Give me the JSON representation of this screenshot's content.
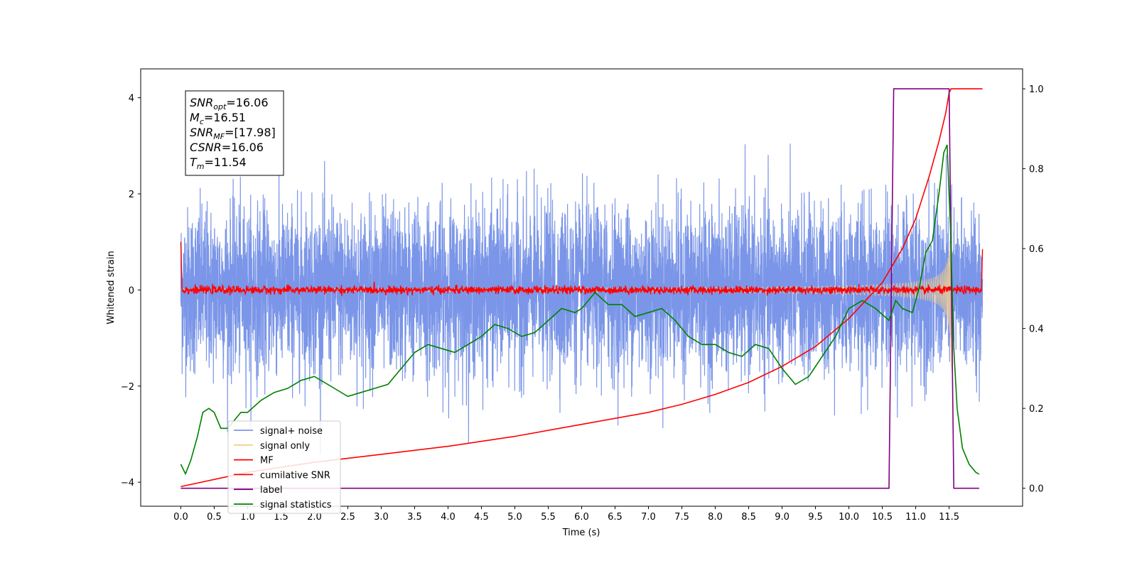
{
  "chart_data": {
    "type": "line",
    "xlabel": "Time (s)",
    "ylabel": "Whitened strain",
    "xlim": [
      -0.6,
      12.6
    ],
    "ylim": [
      -4.5,
      4.6
    ],
    "y2lim": [
      -0.045,
      1.05
    ],
    "x_ticks": [
      "0.0",
      "0.5",
      "1.0",
      "1.5",
      "2.0",
      "2.5",
      "3.0",
      "3.5",
      "4.0",
      "4.5",
      "5.0",
      "5.5",
      "6.0",
      "6.5",
      "7.0",
      "7.5",
      "8.0",
      "8.5",
      "9.0",
      "9.5",
      "10.0",
      "10.5",
      "11.0",
      "11.5"
    ],
    "y_ticks": [
      "4",
      "2",
      "0",
      "−2",
      "−4"
    ],
    "y2_ticks": [
      "1.0",
      "0.8",
      "0.6",
      "0.4",
      "0.2",
      "0.0"
    ],
    "grid": false,
    "legend_position": "lower-left",
    "annotation": [
      {
        "base": "SNR",
        "sub": "opt",
        "value": "=16.06"
      },
      {
        "base": "M",
        "sub": "c",
        "value": "=16.51"
      },
      {
        "base": "SNR",
        "sub": "MF",
        "value": "=[17.98]"
      },
      {
        "base": "CSNR",
        "sub": "",
        "value": "=16.06"
      },
      {
        "base": "T",
        "sub": "m",
        "value": "=11.54"
      }
    ],
    "series": [
      {
        "name": "signal+ noise",
        "color": "#7b96e8",
        "axis": "left",
        "kind": "noise",
        "x_range": [
          0,
          12
        ],
        "amplitude_std": 0.85,
        "peak_range": [
          -3.6,
          3.4
        ]
      },
      {
        "name": "signal only",
        "color": "#f5cf8a",
        "axis": "left",
        "kind": "chirp",
        "x_range": [
          0,
          11.54
        ],
        "merger_time": 11.54,
        "peak_amplitude": 2.7
      },
      {
        "name": "MF",
        "color": "#ff0000",
        "axis": "left",
        "kind": "mf",
        "x_range": [
          0,
          12
        ],
        "baseline": 0.0,
        "start_value": 1.0,
        "end_value": 0.85
      },
      {
        "name": "cumilative SNR",
        "color": "#ff0000",
        "axis": "right",
        "x": [
          0.0,
          1.0,
          2.0,
          3.0,
          4.0,
          5.0,
          6.0,
          7.0,
          7.5,
          8.0,
          8.5,
          9.0,
          9.5,
          10.0,
          10.5,
          10.8,
          11.0,
          11.2,
          11.35,
          11.45,
          11.5,
          11.53,
          11.55,
          11.6,
          11.9,
          12.0
        ],
        "values": [
          0.004,
          0.04,
          0.065,
          0.085,
          0.105,
          0.13,
          0.16,
          0.19,
          0.21,
          0.235,
          0.265,
          0.305,
          0.355,
          0.425,
          0.515,
          0.6,
          0.675,
          0.78,
          0.87,
          0.94,
          0.99,
          1.0,
          1.0,
          1.0,
          1.0,
          1.0
        ]
      },
      {
        "name": "label",
        "color": "#800080",
        "axis": "right",
        "x": [
          0.0,
          10.6,
          10.67,
          11.5,
          11.57,
          11.95
        ],
        "values": [
          0.0,
          0.0,
          1.0,
          1.0,
          0.0,
          0.0
        ]
      },
      {
        "name": "signal statistics",
        "color": "#008000",
        "axis": "right",
        "x": [
          0.0,
          0.07,
          0.15,
          0.25,
          0.33,
          0.42,
          0.5,
          0.6,
          0.7,
          0.8,
          0.9,
          1.0,
          1.2,
          1.4,
          1.6,
          1.8,
          2.0,
          2.1,
          2.3,
          2.5,
          2.7,
          2.9,
          3.1,
          3.3,
          3.5,
          3.7,
          3.9,
          4.1,
          4.3,
          4.5,
          4.7,
          4.9,
          5.1,
          5.3,
          5.5,
          5.7,
          5.9,
          6.0,
          6.2,
          6.4,
          6.6,
          6.8,
          7.0,
          7.2,
          7.4,
          7.6,
          7.8,
          8.0,
          8.2,
          8.4,
          8.6,
          8.8,
          9.0,
          9.2,
          9.4,
          9.6,
          9.8,
          10.0,
          10.2,
          10.4,
          10.6,
          10.7,
          10.8,
          10.95,
          11.05,
          11.15,
          11.25,
          11.35,
          11.42,
          11.47,
          11.52,
          11.57,
          11.62,
          11.7,
          11.8,
          11.9,
          11.95
        ],
        "values": [
          0.06,
          0.036,
          0.07,
          0.13,
          0.19,
          0.2,
          0.19,
          0.15,
          0.15,
          0.17,
          0.19,
          0.19,
          0.22,
          0.24,
          0.25,
          0.27,
          0.28,
          0.27,
          0.25,
          0.23,
          0.24,
          0.25,
          0.26,
          0.3,
          0.34,
          0.36,
          0.35,
          0.34,
          0.36,
          0.38,
          0.41,
          0.4,
          0.38,
          0.39,
          0.42,
          0.45,
          0.44,
          0.45,
          0.49,
          0.46,
          0.46,
          0.43,
          0.44,
          0.45,
          0.42,
          0.38,
          0.36,
          0.36,
          0.34,
          0.33,
          0.36,
          0.35,
          0.3,
          0.26,
          0.28,
          0.33,
          0.38,
          0.45,
          0.47,
          0.45,
          0.42,
          0.47,
          0.45,
          0.44,
          0.5,
          0.59,
          0.62,
          0.74,
          0.84,
          0.86,
          0.65,
          0.35,
          0.2,
          0.1,
          0.06,
          0.04,
          0.035
        ]
      }
    ]
  }
}
